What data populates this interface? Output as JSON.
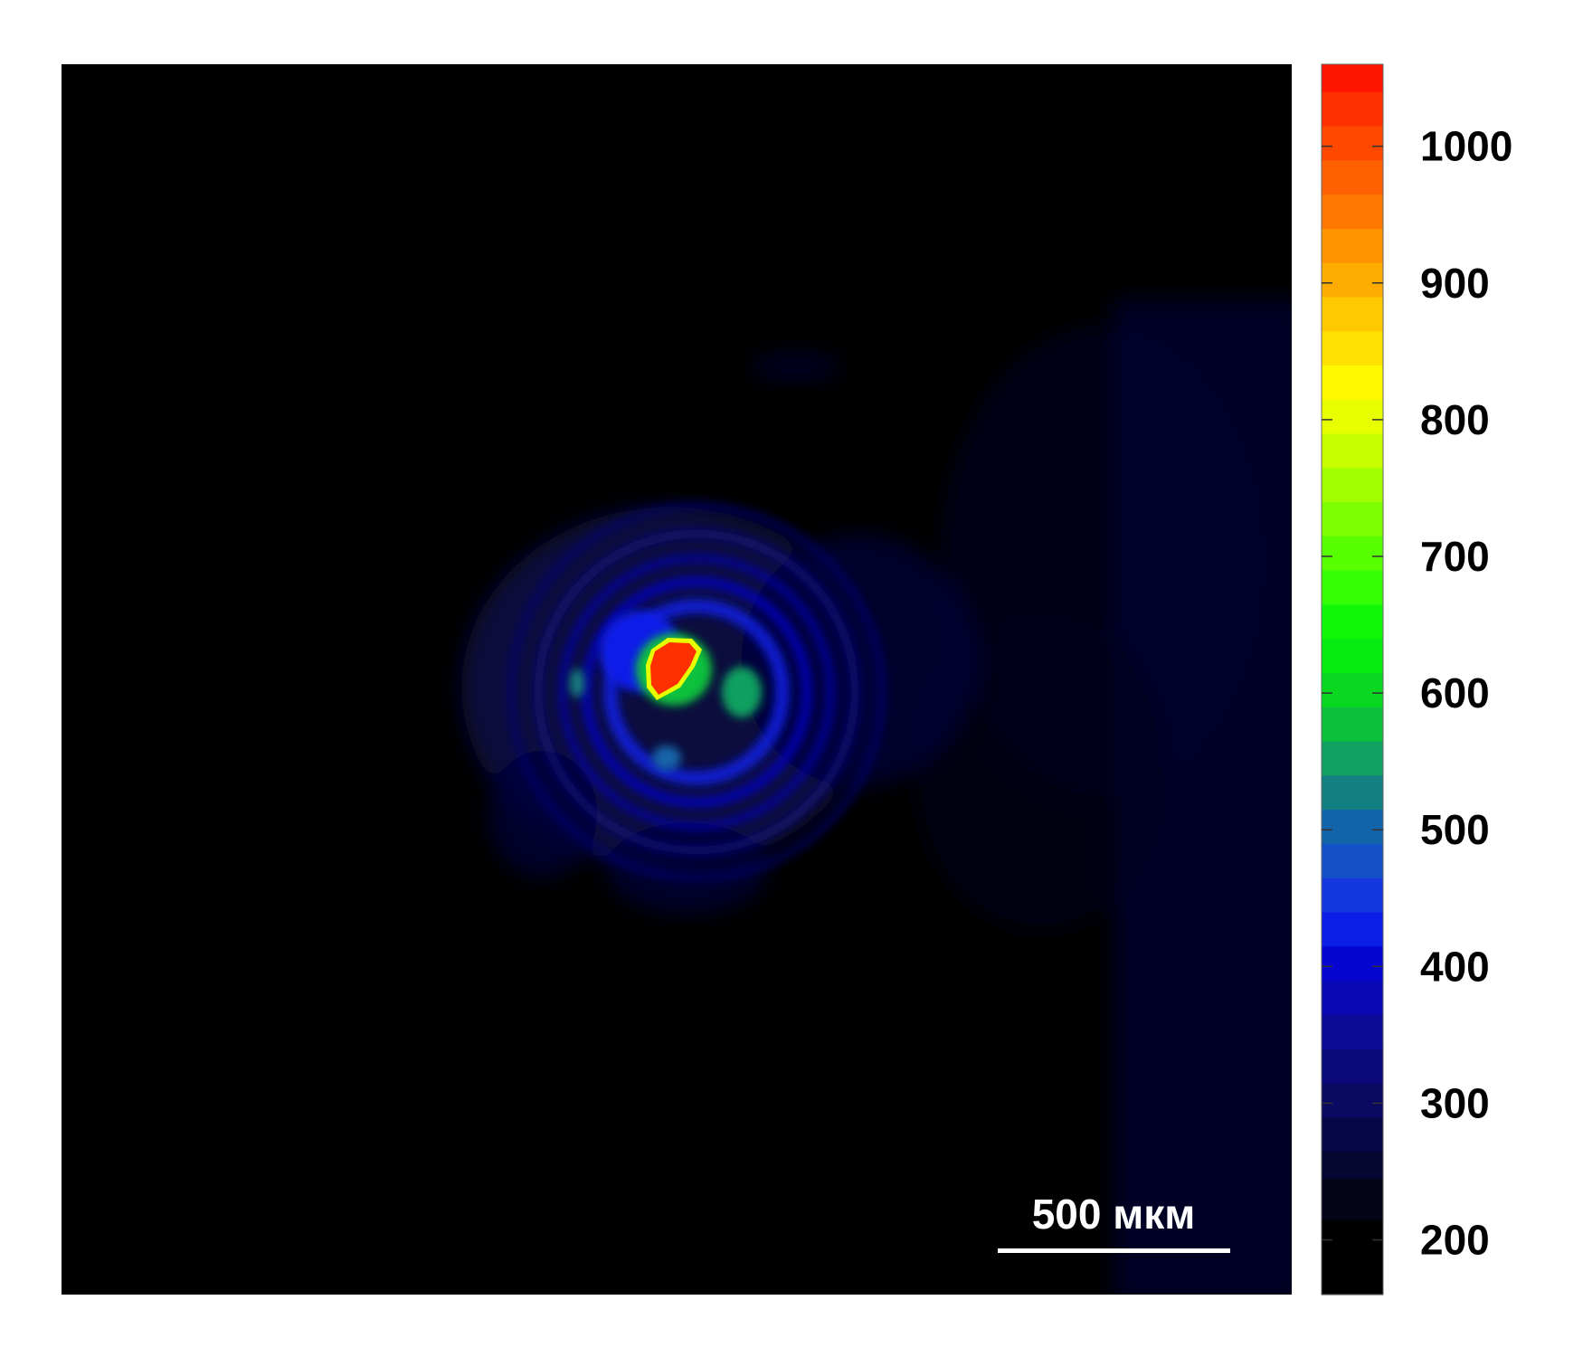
{
  "chart_data": {
    "type": "heatmap",
    "title": "",
    "xlabel": "",
    "ylabel": "",
    "grid": false,
    "background_color": "#000000",
    "colorbar": {
      "placement": "right",
      "range": [
        160,
        1060
      ],
      "ticks": [
        200,
        300,
        400,
        500,
        600,
        700,
        800,
        900,
        1000
      ],
      "tick_labels": [
        "200",
        "300",
        "400",
        "500",
        "600",
        "700",
        "800",
        "900",
        "1000"
      ],
      "levels": [
        {
          "value": 160,
          "color": "#000000"
        },
        {
          "value": 215,
          "color": "#040418"
        },
        {
          "value": 245,
          "color": "#060630"
        },
        {
          "value": 265,
          "color": "#080848"
        },
        {
          "value": 290,
          "color": "#0a0a62"
        },
        {
          "value": 315,
          "color": "#0a0a7c"
        },
        {
          "value": 340,
          "color": "#0a0a96"
        },
        {
          "value": 365,
          "color": "#0808b4"
        },
        {
          "value": 390,
          "color": "#0606d0"
        },
        {
          "value": 415,
          "color": "#0a1ee8"
        },
        {
          "value": 440,
          "color": "#1438e0"
        },
        {
          "value": 465,
          "color": "#1450c8"
        },
        {
          "value": 490,
          "color": "#1264a8"
        },
        {
          "value": 515,
          "color": "#128080"
        },
        {
          "value": 540,
          "color": "#10a060"
        },
        {
          "value": 565,
          "color": "#0cc03c"
        },
        {
          "value": 590,
          "color": "#08d820"
        },
        {
          "value": 615,
          "color": "#06ec10"
        },
        {
          "value": 640,
          "color": "#10f808"
        },
        {
          "value": 665,
          "color": "#34ff04"
        },
        {
          "value": 690,
          "color": "#58ff00"
        },
        {
          "value": 715,
          "color": "#7cff00"
        },
        {
          "value": 740,
          "color": "#a0ff00"
        },
        {
          "value": 765,
          "color": "#c8ff00"
        },
        {
          "value": 790,
          "color": "#e8ff00"
        },
        {
          "value": 815,
          "color": "#fff800"
        },
        {
          "value": 840,
          "color": "#ffe000"
        },
        {
          "value": 865,
          "color": "#ffc800"
        },
        {
          "value": 890,
          "color": "#ffac00"
        },
        {
          "value": 915,
          "color": "#ff9400"
        },
        {
          "value": 940,
          "color": "#ff7800"
        },
        {
          "value": 965,
          "color": "#ff6000"
        },
        {
          "value": 990,
          "color": "#ff4800"
        },
        {
          "value": 1015,
          "color": "#ff3000"
        },
        {
          "value": 1040,
          "color": "#ff1400"
        }
      ]
    },
    "features": [
      {
        "name": "central peak",
        "peak_value": 1040,
        "x": 0.49,
        "y": 0.5
      },
      {
        "name": "inner ring",
        "peak_value": 620,
        "x": 0.51,
        "y": 0.51
      },
      {
        "name": "outer rings",
        "peak_value": 380,
        "x": 0.5,
        "y": 0.51
      },
      {
        "name": "diffuse right background",
        "peak_value": 230,
        "x": 0.84,
        "y": 0.55
      }
    ],
    "scale_bar": {
      "label": "500 мкм",
      "length_um": 500
    }
  }
}
